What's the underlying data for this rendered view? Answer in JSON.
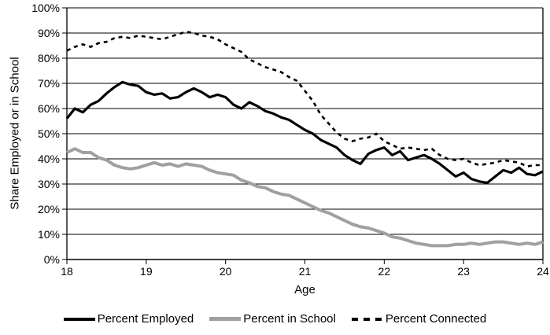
{
  "chart_data": {
    "type": "line",
    "title": "",
    "xlabel": "Age",
    "ylabel": "Share Employed or in School",
    "xlim": [
      18,
      24
    ],
    "ylim": [
      0,
      100
    ],
    "xticks": [
      18,
      19,
      20,
      21,
      22,
      23,
      24
    ],
    "xtick_labels": [
      "18",
      "19",
      "20",
      "21",
      "22",
      "23",
      "24"
    ],
    "yticks": [
      0,
      10,
      20,
      30,
      40,
      50,
      60,
      70,
      80,
      90,
      100
    ],
    "ytick_labels": [
      "0%",
      "10%",
      "20%",
      "30%",
      "40%",
      "50%",
      "60%",
      "70%",
      "80%",
      "90%",
      "100%"
    ],
    "grid": "horizontal",
    "legend_position": "bottom",
    "x": [
      18.0,
      18.1,
      18.2,
      18.3,
      18.4,
      18.5,
      18.6,
      18.7,
      18.8,
      18.9,
      19.0,
      19.1,
      19.2,
      19.3,
      19.4,
      19.5,
      19.6,
      19.7,
      19.8,
      19.9,
      20.0,
      20.1,
      20.2,
      20.3,
      20.4,
      20.5,
      20.6,
      20.7,
      20.8,
      20.9,
      21.0,
      21.1,
      21.2,
      21.3,
      21.4,
      21.5,
      21.6,
      21.7,
      21.8,
      21.9,
      22.0,
      22.1,
      22.2,
      22.3,
      22.4,
      22.5,
      22.6,
      22.7,
      22.8,
      22.9,
      23.0,
      23.1,
      23.2,
      23.3,
      23.4,
      23.5,
      23.6,
      23.7,
      23.8,
      23.9,
      24.0
    ],
    "series": [
      {
        "name": "Percent Employed",
        "color": "#000000",
        "style": "solid",
        "values": [
          56,
          60,
          58.5,
          61.5,
          63,
          66,
          68.5,
          70.5,
          69.5,
          69,
          66.5,
          65.5,
          66,
          64,
          64.5,
          66.5,
          68,
          66.5,
          64.5,
          65.5,
          64.5,
          61.5,
          60,
          62.5,
          61,
          59,
          58,
          56.5,
          55.5,
          53.5,
          51.5,
          50,
          47.5,
          46,
          44.5,
          41.5,
          39.5,
          38,
          42,
          43.5,
          44.5,
          41.5,
          43,
          39.5,
          40.5,
          41.5,
          40,
          38,
          35.5,
          33,
          34.5,
          32,
          31,
          30.5,
          33,
          35.5,
          34.5,
          36.5,
          34,
          33.5,
          35
        ]
      },
      {
        "name": "Percent in School",
        "color": "#A0A0A0",
        "style": "solid",
        "values": [
          42.5,
          44,
          42.5,
          42.5,
          40.5,
          39.5,
          37.5,
          36.5,
          36,
          36.5,
          37.5,
          38.5,
          37.5,
          38,
          37,
          38,
          37.5,
          37,
          35.5,
          34.5,
          34,
          33.5,
          31.5,
          30.5,
          29,
          28.5,
          27,
          26,
          25.5,
          24,
          22.5,
          21,
          19.5,
          18.5,
          17,
          15.5,
          14,
          13,
          12.5,
          11.5,
          10.5,
          9,
          8.5,
          7.5,
          6.5,
          6,
          5.5,
          5.5,
          5.5,
          6,
          6,
          6.5,
          6,
          6.5,
          7,
          7,
          6.5,
          6,
          6.5,
          6,
          7
        ]
      },
      {
        "name": "Percent Connected",
        "color": "#000000",
        "style": "dashed",
        "values": [
          83,
          84.5,
          85.5,
          84.5,
          86,
          86.5,
          88,
          88.5,
          88,
          89,
          88.5,
          88,
          87.5,
          88.5,
          89.5,
          90.5,
          90,
          89,
          88.5,
          87.5,
          85.5,
          84,
          82.5,
          79.5,
          78,
          76.5,
          75.5,
          74.5,
          72.5,
          71,
          67,
          63,
          57.5,
          54,
          50.5,
          48,
          47,
          48,
          48.5,
          50,
          47,
          45.5,
          44,
          44.5,
          44,
          43.5,
          44,
          41.5,
          40,
          39.5,
          40,
          38.5,
          37.5,
          38,
          38.5,
          39.5,
          39,
          38.5,
          37,
          37.5,
          37.5
        ]
      }
    ]
  }
}
